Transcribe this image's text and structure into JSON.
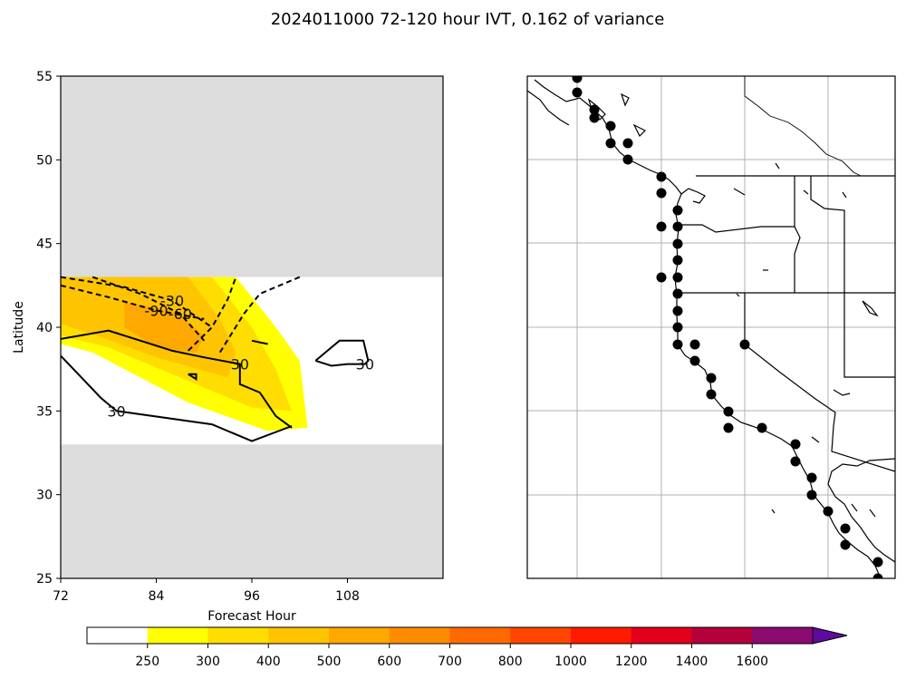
{
  "chart_data": [
    {
      "type": "contour",
      "title": "2024011000 72-120 hour IVT, 0.162 of variance",
      "xlabel": "Forecast Hour",
      "ylabel": "Latitude",
      "xlim": [
        72,
        120
      ],
      "ylim": [
        25,
        55
      ],
      "xticks": [
        "72",
        "84",
        "96",
        "108"
      ],
      "yticks": [
        "25",
        "30",
        "35",
        "40",
        "45",
        "50",
        "55"
      ],
      "data_region": {
        "lat_min": 33,
        "lat_max": 43
      },
      "masked_color": "#dcdcdc",
      "fill_levels": [
        {
          "min": 250,
          "color": "#ffff00",
          "polygon": [
            [
              72,
              43
            ],
            [
              94,
              43
            ],
            [
              99,
              40
            ],
            [
              102,
              38
            ],
            [
              103,
              34
            ],
            [
              98,
              33.8
            ],
            [
              88,
              35.5
            ],
            [
              76,
              38.5
            ],
            [
              72,
              39
            ]
          ]
        },
        {
          "min": 300,
          "color": "#ffdd00",
          "polygon": [
            [
              72,
              43
            ],
            [
              91,
              43
            ],
            [
              96,
              40
            ],
            [
              99,
              37.5
            ],
            [
              101,
              35
            ],
            [
              96,
              35.2
            ],
            [
              86,
              37.2
            ],
            [
              78,
              38.8
            ],
            [
              72,
              39.5
            ]
          ]
        },
        {
          "min": 400,
          "color": "#ffc400",
          "polygon": [
            [
              74,
              43
            ],
            [
              88,
              43
            ],
            [
              92,
              40.5
            ],
            [
              94,
              38.5
            ],
            [
              93,
              37
            ],
            [
              84,
              38.2
            ],
            [
              76,
              39.6
            ],
            [
              72,
              40.2
            ],
            [
              72,
              43
            ]
          ]
        },
        {
          "min": 500,
          "color": "#ffa800",
          "polygon": [
            [
              80,
              41.5
            ],
            [
              86,
              41
            ],
            [
              90,
              39.5
            ],
            [
              89,
              38.5
            ],
            [
              84,
              38.8
            ],
            [
              80,
              40
            ]
          ]
        }
      ],
      "contours": [
        {
          "label": "30",
          "style": "solid",
          "points": [
            [
              72,
              39.3
            ],
            [
              78,
              39.8
            ],
            [
              86,
              38.6
            ],
            [
              90,
              38.2
            ],
            [
              94.5,
              37.8
            ],
            [
              94.5,
              36.6
            ],
            [
              97,
              36.1
            ],
            [
              99,
              34.7
            ],
            [
              101,
              34
            ]
          ]
        },
        {
          "label": "30",
          "style": "solid",
          "points": [
            [
              72,
              38.3
            ],
            [
              75,
              36.8
            ],
            [
              77,
              35.8
            ],
            [
              79,
              35
            ],
            [
              91,
              34.2
            ],
            [
              96,
              33.2
            ],
            [
              101,
              34.1
            ]
          ]
        },
        {
          "label": "",
          "style": "solid",
          "points": [
            [
              96,
              39.2
            ],
            [
              98,
              39
            ]
          ]
        },
        {
          "label": "",
          "style": "solid",
          "points": [
            [
              88,
              37.2
            ],
            [
              89,
              37.2
            ],
            [
              89,
              36.9
            ],
            [
              88,
              37.2
            ]
          ]
        },
        {
          "label": "30",
          "style": "solid",
          "points": [
            [
              104,
              38
            ],
            [
              107,
              39.2
            ],
            [
              110,
              39.2
            ],
            [
              110.6,
              38
            ],
            [
              110.2,
              37.8
            ],
            [
              108,
              37.8
            ],
            [
              106,
              37.7
            ],
            [
              104,
              38
            ]
          ]
        },
        {
          "label": "-90",
          "style": "dashed",
          "points": [
            [
              72,
              42.5
            ],
            [
              78,
              41.8
            ],
            [
              84,
              41
            ],
            [
              90,
              40.5
            ]
          ]
        },
        {
          "label": "-60",
          "style": "dashed",
          "points": [
            [
              76,
              43
            ],
            [
              82,
              42
            ],
            [
              87,
              40.8
            ],
            [
              90,
              39.2
            ]
          ]
        },
        {
          "label": "-30",
          "style": "dashed",
          "points": [
            [
              72,
              43
            ],
            [
              80,
              42.4
            ],
            [
              86,
              41.6
            ],
            [
              91,
              40
            ]
          ]
        },
        {
          "label": "",
          "style": "dashed",
          "points": [
            [
              88,
              38.6
            ],
            [
              91,
              40
            ],
            [
              93,
              41.7
            ],
            [
              94,
              43
            ]
          ]
        },
        {
          "label": "",
          "style": "dashed",
          "points": [
            [
              92,
              38.5
            ],
            [
              95,
              40.8
            ],
            [
              97,
              42
            ],
            [
              102,
              43
            ]
          ]
        }
      ]
    },
    {
      "type": "map",
      "gridlines": true,
      "site_markers": 38
    }
  ],
  "colorbar": {
    "ticks": [
      "250",
      "300",
      "400",
      "500",
      "600",
      "700",
      "800",
      "1000",
      "1200",
      "1400",
      "1600"
    ],
    "colors": [
      "#ffffff",
      "#ffff00",
      "#ffdd00",
      "#ffc400",
      "#ffa800",
      "#ff8c00",
      "#ff6a00",
      "#ff4500",
      "#ff1a00",
      "#e3001b",
      "#b3003a",
      "#8b0a70",
      "#5e0a9e"
    ]
  }
}
